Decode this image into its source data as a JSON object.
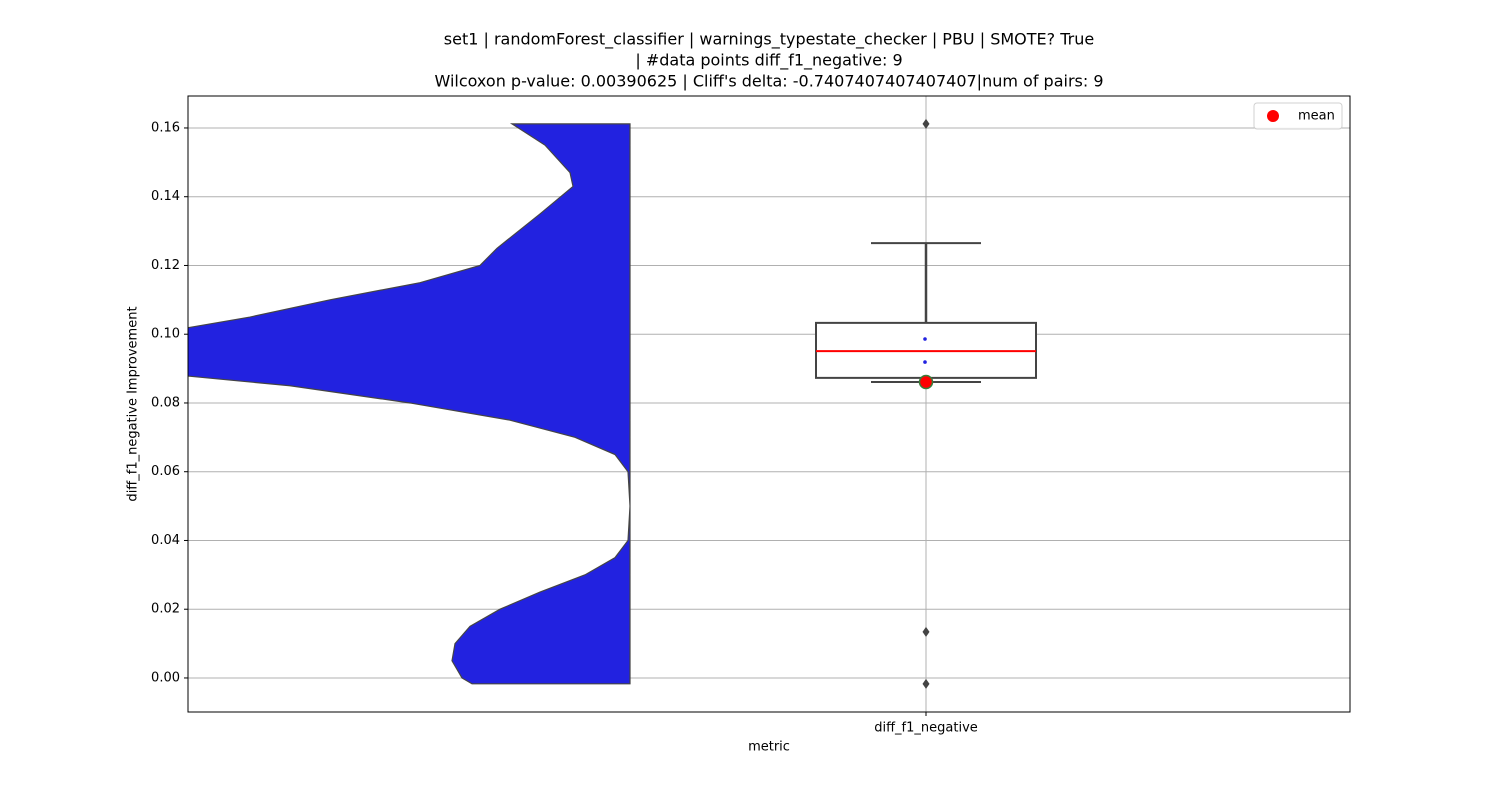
{
  "chart_data": {
    "type": "violin_box",
    "title": [
      "set1 | randomForest_classifier | warnings_typestate_checker | PBU | SMOTE? True",
      "| #data points diff_f1_negative: 9",
      "Wilcoxon p-value: 0.00390625 | Cliff's delta: -0.7407407407407407|num of pairs: 9"
    ],
    "xlabel": "metric",
    "ylabel": "diff_f1_negative Improvement",
    "categories": [
      "diff_f1_negative"
    ],
    "ylim": [
      -0.0099,
      0.1693
    ],
    "yticks": [
      {
        "value": 0,
        "label": "0.00"
      },
      {
        "value": 0.02,
        "label": "0.02"
      },
      {
        "value": 0.04,
        "label": "0.04"
      },
      {
        "value": 0.06,
        "label": "0.06"
      },
      {
        "value": 0.08,
        "label": "0.08"
      },
      {
        "value": 0.1,
        "label": "0.10"
      },
      {
        "value": 0.12,
        "label": "0.12"
      },
      {
        "value": 0.14,
        "label": "0.14"
      },
      {
        "value": 0.16,
        "label": "0.16"
      }
    ],
    "grid": true,
    "violin": {
      "color": "#2222e0",
      "y": [
        0.1612,
        0.155,
        0.147,
        0.143,
        0.135,
        0.125,
        0.12,
        0.115,
        0.11,
        0.105,
        0.1,
        0.095,
        0.09,
        0.085,
        0.08,
        0.075,
        0.07,
        0.065,
        0.06,
        0.05,
        0.04,
        0.035,
        0.03,
        0.025,
        0.02,
        0.015,
        0.01,
        0.005,
        0.0,
        -0.0017
      ],
      "density": [
        118,
        85,
        60,
        57,
        90,
        133,
        150,
        210,
        300,
        380,
        480,
        620,
        520,
        340,
        220,
        120,
        55,
        15,
        2,
        0,
        2,
        15,
        45,
        90,
        130,
        160,
        175,
        178,
        168,
        158
      ]
    },
    "box": {
      "q1": 0.0873,
      "median": 0.0951,
      "q3": 0.1033,
      "whisker_low": 0.0861,
      "whisker_high": 0.1265,
      "mean": 0.0861,
      "outliers": [
        0.1612,
        0.0134,
        -0.0017
      ],
      "points": [
        0.0986,
        0.0919
      ],
      "median_color": "#ff0000",
      "mean_color": "#ff0000"
    },
    "legend": {
      "labels": [
        "mean"
      ],
      "position": "upper right"
    }
  }
}
